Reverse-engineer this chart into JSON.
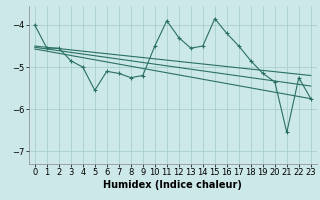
{
  "xlabel": "Humidex (Indice chaleur)",
  "bg_color": "#cce8e8",
  "grid_color": "#aacfcf",
  "line_color": "#2a7060",
  "xlim": [
    -0.5,
    23.5
  ],
  "ylim": [
    -7.3,
    -3.55
  ],
  "yticks": [
    -7,
    -6,
    -5,
    -4
  ],
  "xticks": [
    0,
    1,
    2,
    3,
    4,
    5,
    6,
    7,
    8,
    9,
    10,
    11,
    12,
    13,
    14,
    15,
    16,
    17,
    18,
    19,
    20,
    21,
    22,
    23
  ],
  "main_line_x": [
    0,
    1,
    2,
    3,
    4,
    5,
    6,
    7,
    8,
    9,
    10,
    11,
    12,
    13,
    14,
    15,
    16,
    17,
    18,
    19,
    20,
    21,
    22,
    23
  ],
  "main_line_y": [
    -4.0,
    -4.55,
    -4.55,
    -4.85,
    -5.0,
    -5.55,
    -5.1,
    -5.15,
    -5.25,
    -5.2,
    -4.5,
    -3.9,
    -4.3,
    -4.55,
    -4.5,
    -3.85,
    -4.2,
    -4.5,
    -4.85,
    -5.15,
    -5.35,
    -6.55,
    -5.25,
    -5.75
  ],
  "trend1_x": [
    0,
    23
  ],
  "trend1_y": [
    -4.5,
    -5.2
  ],
  "trend2_x": [
    0,
    23
  ],
  "trend2_y": [
    -4.53,
    -5.45
  ],
  "trend3_x": [
    0,
    23
  ],
  "trend3_y": [
    -4.57,
    -5.75
  ],
  "fontsize_label": 7,
  "fontsize_tick": 6
}
